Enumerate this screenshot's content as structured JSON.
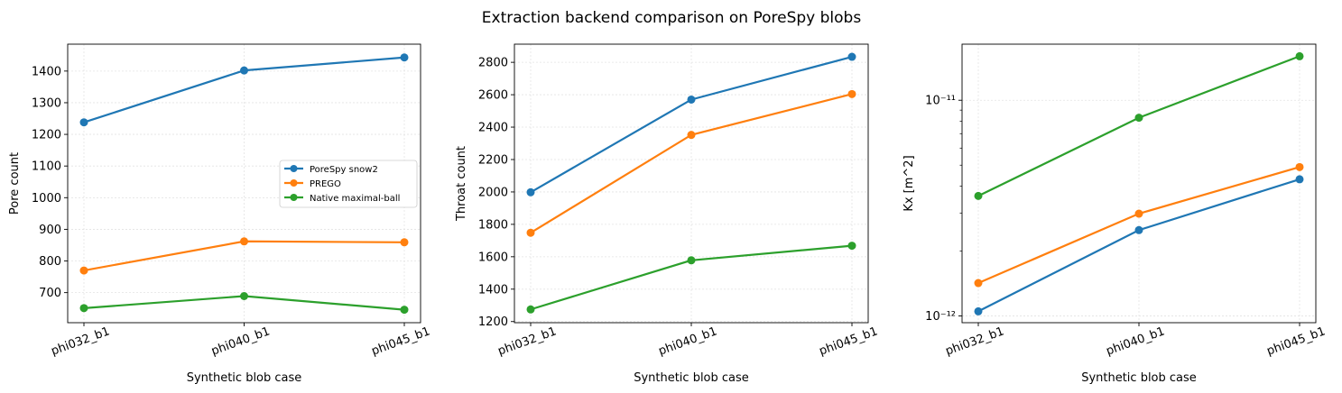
{
  "figure": {
    "title": "Extraction backend comparison on PoreSpy blobs"
  },
  "colors": {
    "PoreSpy snow2": "#1f77b4",
    "PREGO": "#ff7f0e",
    "Native maximal-ball": "#2ca02c"
  },
  "chart_data": [
    {
      "type": "line",
      "categories": [
        "phi032_b1",
        "phi040_b1",
        "phi045_b1"
      ],
      "xlabel": "Synthetic blob case",
      "ylabel": "Pore count",
      "yscale": "linear",
      "ylim": [
        605,
        1485
      ],
      "yticks": [
        700,
        800,
        900,
        1000,
        1100,
        1200,
        1300,
        1400
      ],
      "grid": true,
      "legend": "center-right",
      "series": [
        {
          "name": "PoreSpy snow2",
          "values": [
            1238,
            1402,
            1443
          ]
        },
        {
          "name": "PREGO",
          "values": [
            770,
            862,
            859
          ]
        },
        {
          "name": "Native maximal-ball",
          "values": [
            651,
            689,
            646
          ]
        }
      ]
    },
    {
      "type": "line",
      "categories": [
        "phi032_b1",
        "phi040_b1",
        "phi045_b1"
      ],
      "xlabel": "Synthetic blob case",
      "ylabel": "Throat count",
      "yscale": "linear",
      "ylim": [
        1193,
        2912
      ],
      "yticks": [
        1200,
        1400,
        1600,
        1800,
        2000,
        2200,
        2400,
        2600,
        2800
      ],
      "grid": true,
      "series": [
        {
          "name": "PoreSpy snow2",
          "values": [
            1998,
            2570,
            2834
          ]
        },
        {
          "name": "PREGO",
          "values": [
            1748,
            2352,
            2604
          ]
        },
        {
          "name": "Native maximal-ball",
          "values": [
            1275,
            1578,
            1668
          ]
        }
      ]
    },
    {
      "type": "line",
      "categories": [
        "phi032_b1",
        "phi040_b1",
        "phi045_b1"
      ],
      "xlabel": "Synthetic blob case",
      "ylabel": "Kx [m^2]",
      "yscale": "log",
      "ylim": [
        9.3e-13,
        1.82e-11
      ],
      "yticks": [
        1e-12,
        1e-11
      ],
      "yticklabels": [
        "10⁻¹²",
        "10⁻¹¹"
      ],
      "grid": true,
      "series": [
        {
          "name": "PoreSpy snow2",
          "values": [
            1.05e-12,
            2.5e-12,
            4.3e-12
          ]
        },
        {
          "name": "PREGO",
          "values": [
            1.42e-12,
            2.98e-12,
            4.9e-12
          ]
        },
        {
          "name": "Native maximal-ball",
          "values": [
            3.6e-12,
            8.3e-12,
            1.6e-11
          ]
        }
      ]
    }
  ]
}
